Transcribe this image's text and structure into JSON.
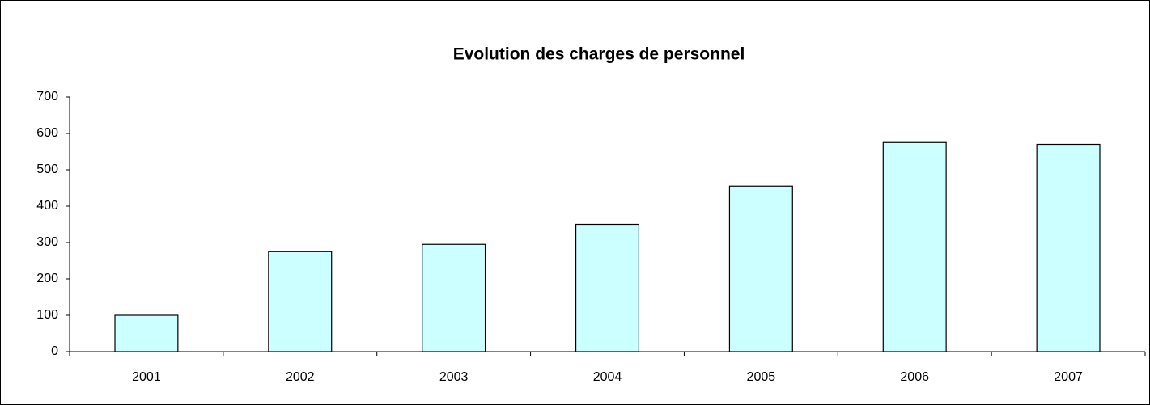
{
  "chart_data": {
    "type": "bar",
    "title": "Evolution des charges de personnel",
    "categories": [
      "2001",
      "2002",
      "2003",
      "2004",
      "2005",
      "2006",
      "2007"
    ],
    "values": [
      100,
      275,
      295,
      350,
      455,
      575,
      570
    ],
    "color": "#ccffff",
    "ylim": [
      0,
      700
    ],
    "yticks": [
      0,
      100,
      200,
      300,
      400,
      500,
      600,
      700
    ],
    "grid": false
  }
}
